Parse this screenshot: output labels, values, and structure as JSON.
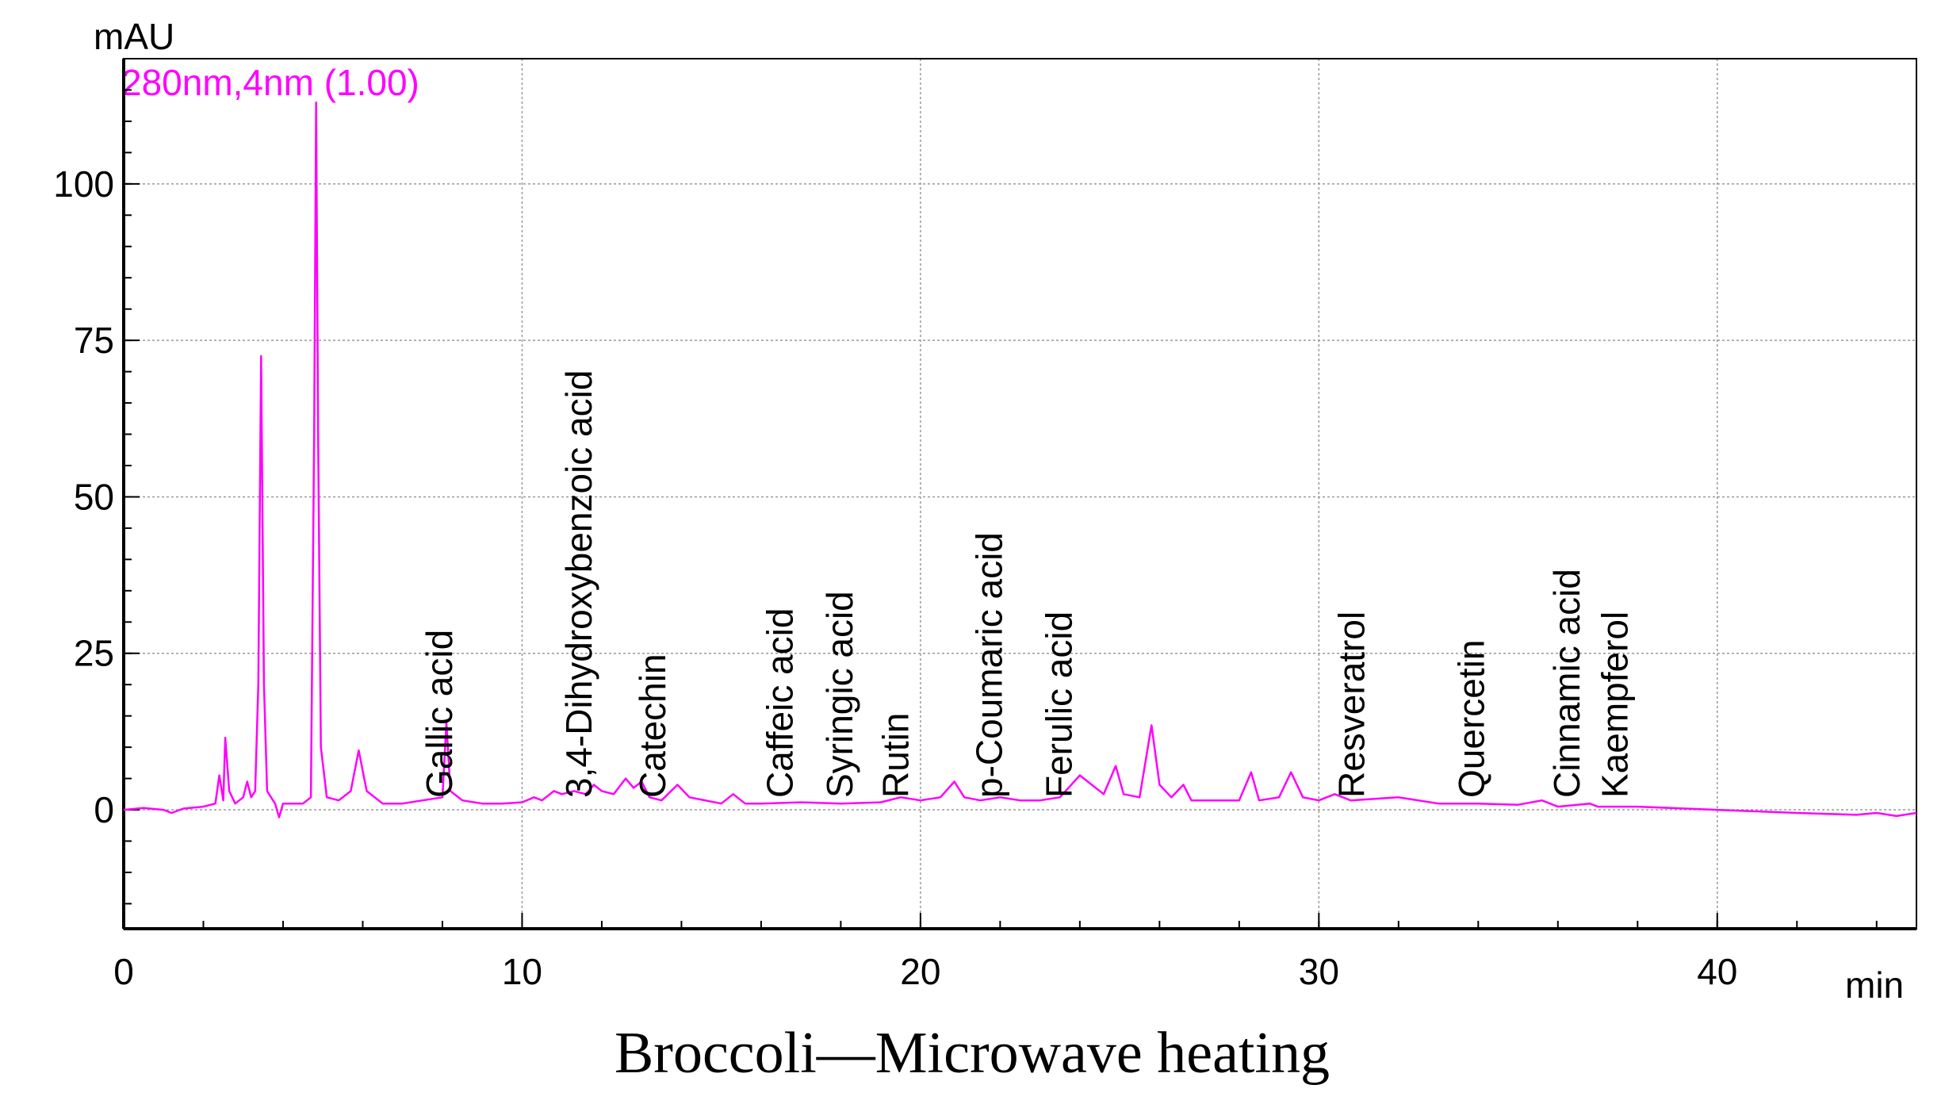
{
  "chart_data": {
    "type": "line",
    "title": "Broccoli—Microwave heating",
    "y_label": "mAU",
    "x_label": "min",
    "xlim": [
      0,
      45
    ],
    "ylim": [
      -19,
      120
    ],
    "xticks": [
      0,
      10,
      20,
      30,
      40
    ],
    "yticks": [
      0,
      25,
      50,
      75,
      100
    ],
    "grid": true,
    "series": [
      {
        "name": "280nm,4nm (1.00)",
        "color": "#ff00ff",
        "x": [
          0,
          0.5,
          1,
          1.2,
          1.5,
          2,
          2.3,
          2.4,
          2.5,
          2.55,
          2.65,
          2.8,
          3,
          3.1,
          3.2,
          3.3,
          3.38,
          3.45,
          3.52,
          3.6,
          3.8,
          3.9,
          4,
          4.5,
          4.7,
          4.78,
          4.83,
          4.88,
          4.95,
          5.1,
          5.4,
          5.7,
          5.9,
          6.1,
          6.5,
          7,
          7.5,
          8,
          8.1,
          8.2,
          8.5,
          9,
          9.5,
          10,
          10.3,
          10.5,
          10.8,
          11,
          11.3,
          11.6,
          11.8,
          12,
          12.3,
          12.6,
          12.8,
          13,
          13.2,
          13.5,
          13.9,
          14.2,
          15,
          15.3,
          15.6,
          16,
          17,
          18,
          19,
          19.5,
          20,
          20.5,
          20.85,
          21.1,
          21.5,
          22,
          22.5,
          23,
          23.5,
          24,
          24.3,
          24.6,
          24.9,
          25.1,
          25.5,
          25.8,
          26,
          26.3,
          26.6,
          26.8,
          27.5,
          28,
          28.3,
          28.5,
          29,
          29.3,
          29.6,
          30,
          30.4,
          30.8,
          32,
          33,
          34,
          35,
          35.6,
          36,
          36.8,
          37,
          38,
          40,
          42,
          43.5,
          44,
          44.5,
          45
        ],
        "values": [
          0,
          0.3,
          0,
          -0.5,
          0.2,
          0.5,
          1,
          5.5,
          1.5,
          11.5,
          3,
          1,
          2,
          4.5,
          2,
          3,
          20,
          72.5,
          20,
          3,
          1,
          -1.2,
          1,
          1,
          2,
          60,
          113,
          60,
          10,
          2,
          1.5,
          3,
          9.5,
          3,
          1,
          1,
          1.5,
          2,
          14,
          3,
          1.5,
          1,
          1,
          1.2,
          2,
          1.5,
          3,
          2.5,
          3,
          2.5,
          4,
          3,
          2.5,
          5,
          3.5,
          4.5,
          2,
          1.5,
          4,
          2,
          1,
          2.5,
          1,
          1,
          1.2,
          1,
          1.2,
          2,
          1.5,
          2,
          4.5,
          2,
          1.5,
          2,
          1.5,
          1.5,
          2,
          5.5,
          4,
          2.5,
          7,
          2.5,
          2,
          13.5,
          4,
          2,
          4,
          1.5,
          1.5,
          1.5,
          6,
          1.5,
          2,
          6,
          2,
          1.5,
          2.5,
          1.5,
          2,
          1,
          1,
          0.8,
          1.5,
          0.5,
          1,
          0.5,
          0.5,
          0,
          -0.5,
          -0.8,
          -0.5,
          -1,
          -0.5
        ]
      }
    ],
    "annotations": [
      {
        "text": "Gallic acid",
        "x": 8.0
      },
      {
        "text": "3,4-Dihydroxybenzoic acid",
        "x": 11.5
      },
      {
        "text": "Catechin",
        "x": 13.35
      },
      {
        "text": "Caffeic acid",
        "x": 16.55
      },
      {
        "text": "Syringic acid",
        "x": 18.05
      },
      {
        "text": "Rutin",
        "x": 19.45
      },
      {
        "text": "p-Coumaric acid",
        "x": 21.8
      },
      {
        "text": "Ferulic acid",
        "x": 23.55
      },
      {
        "text": "Resveratrol",
        "x": 30.9
      },
      {
        "text": "Quercetin",
        "x": 33.9
      },
      {
        "text": "Cinnamic acid",
        "x": 36.3
      },
      {
        "text": "Kaempferol",
        "x": 37.5
      }
    ]
  }
}
